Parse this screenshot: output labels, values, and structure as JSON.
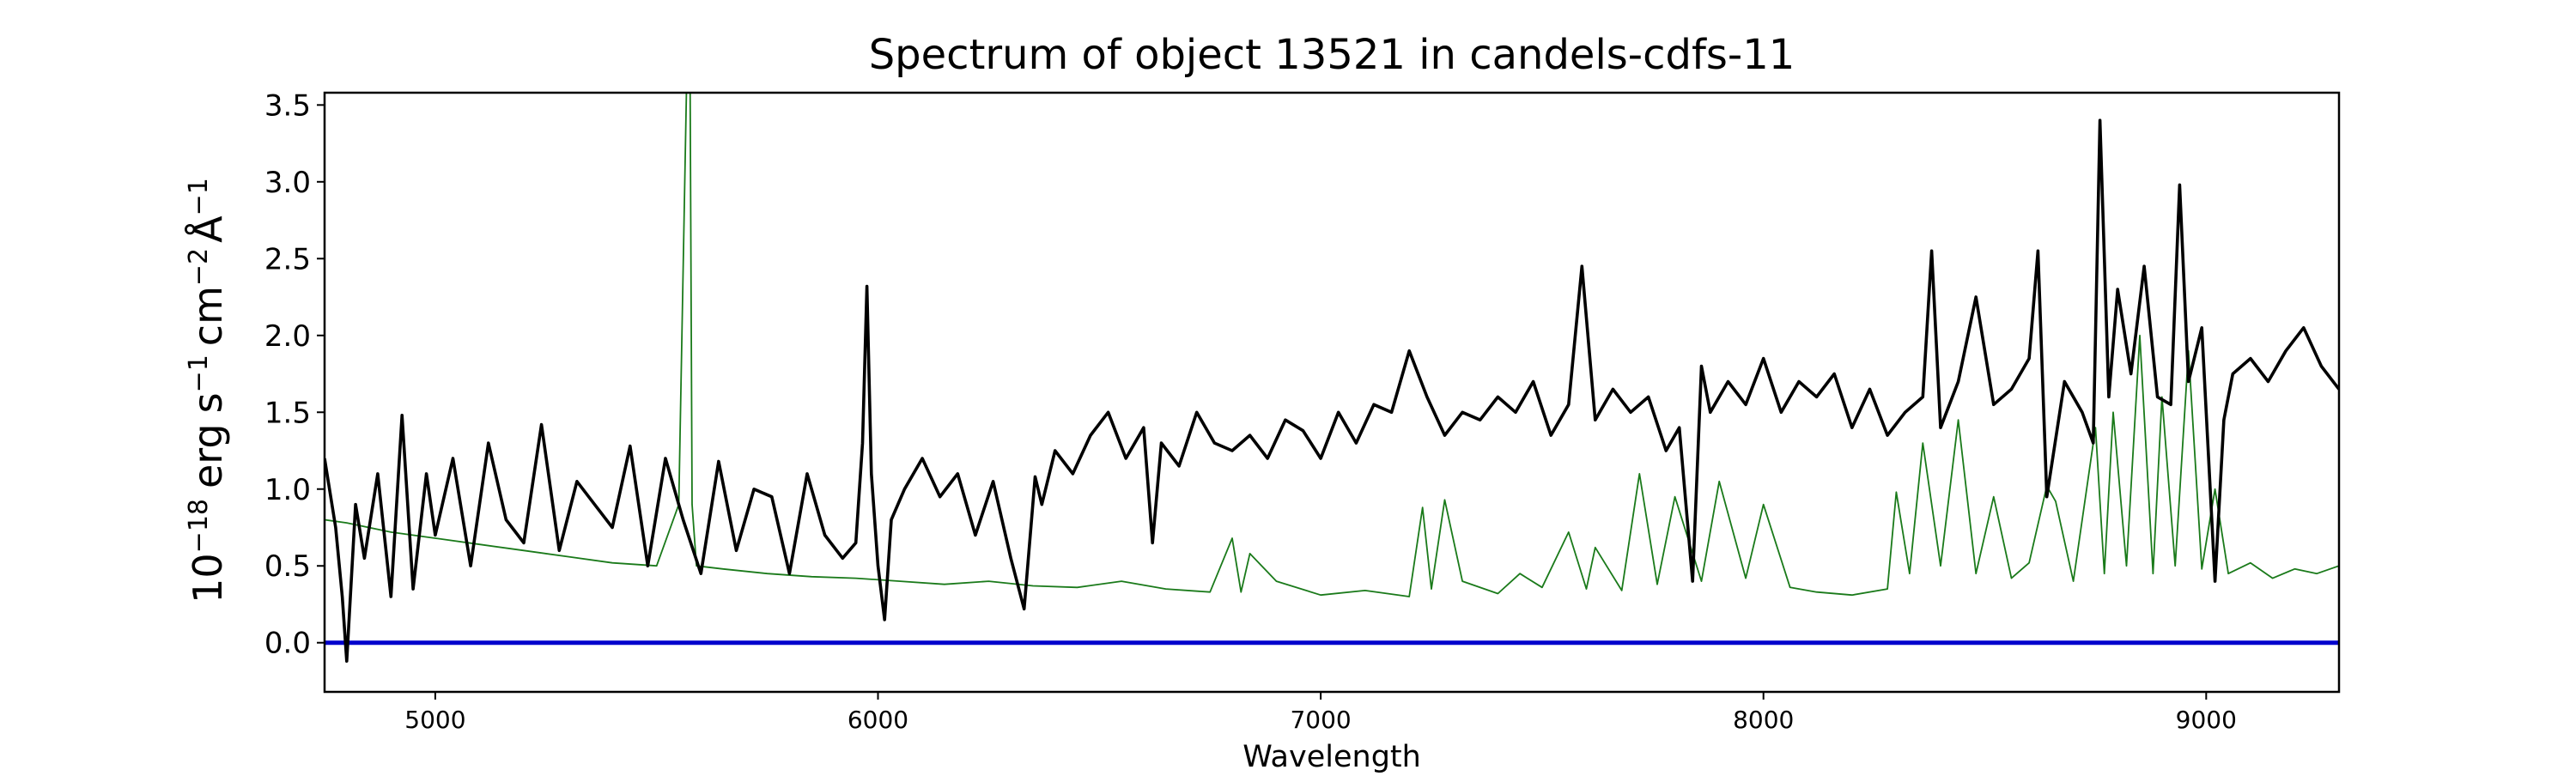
{
  "chart_data": {
    "type": "line",
    "title": "Spectrum of object 13521 in candels-cdfs-11",
    "xlabel": "Wavelength",
    "ylabel": "10^-18 erg s^-1 cm^-2 Å^-1",
    "ylabel_parts": {
      "mult_base": "10",
      "mult_exp": "−18",
      "erg": "erg",
      "s_base": "s",
      "s_exp": "−1",
      "cm_base": "cm",
      "cm_exp": "−2",
      "ang_base": "Å",
      "ang_exp": "−1"
    },
    "xlim": [
      4750,
      9300
    ],
    "ylim": [
      -0.32,
      3.58
    ],
    "x_ticks": [
      5000,
      6000,
      7000,
      8000,
      9000
    ],
    "x_tick_labels": [
      "5000",
      "6000",
      "7000",
      "8000",
      "9000"
    ],
    "y_ticks": [
      0.0,
      0.5,
      1.0,
      1.5,
      2.0,
      2.5,
      3.0,
      3.5
    ],
    "y_tick_labels": [
      "0.0",
      "0.5",
      "1.0",
      "1.5",
      "2.0",
      "2.5",
      "3.0",
      "3.5"
    ],
    "grid": false,
    "colors": {
      "flux": "#000000",
      "error": "#1a7a1a",
      "zero": "#0000cc"
    },
    "zero_line": 0.0,
    "series": [
      {
        "role": "flux",
        "x": [
          4750,
          4775,
          4790,
          4800,
          4820,
          4840,
          4870,
          4900,
          4925,
          4950,
          4980,
          5000,
          5040,
          5080,
          5120,
          5160,
          5200,
          5240,
          5280,
          5320,
          5360,
          5400,
          5440,
          5480,
          5520,
          5560,
          5600,
          5640,
          5680,
          5720,
          5760,
          5800,
          5840,
          5880,
          5920,
          5950,
          5965,
          5975,
          5985,
          6000,
          6015,
          6030,
          6060,
          6100,
          6140,
          6180,
          6220,
          6260,
          6300,
          6330,
          6355,
          6370,
          6400,
          6440,
          6480,
          6520,
          6560,
          6600,
          6620,
          6640,
          6680,
          6720,
          6760,
          6800,
          6840,
          6880,
          6920,
          6960,
          7000,
          7040,
          7080,
          7120,
          7160,
          7200,
          7240,
          7280,
          7320,
          7360,
          7400,
          7440,
          7480,
          7520,
          7560,
          7590,
          7620,
          7660,
          7700,
          7740,
          7780,
          7810,
          7840,
          7860,
          7880,
          7920,
          7960,
          8000,
          8040,
          8080,
          8120,
          8160,
          8200,
          8240,
          8280,
          8320,
          8360,
          8380,
          8400,
          8440,
          8480,
          8520,
          8560,
          8600,
          8620,
          8640,
          8680,
          8720,
          8745,
          8760,
          8780,
          8800,
          8830,
          8860,
          8890,
          8920,
          8940,
          8960,
          8990,
          9020,
          9040,
          9060,
          9100,
          9140,
          9180,
          9220,
          9260,
          9300
        ],
        "y": [
          1.2,
          0.75,
          0.3,
          -0.12,
          0.9,
          0.55,
          1.1,
          0.3,
          1.48,
          0.35,
          1.1,
          0.7,
          1.2,
          0.5,
          1.3,
          0.8,
          0.65,
          1.42,
          0.6,
          1.05,
          0.9,
          0.75,
          1.28,
          0.5,
          1.2,
          0.8,
          0.45,
          1.18,
          0.6,
          1.0,
          0.95,
          0.45,
          1.1,
          0.7,
          0.55,
          0.65,
          1.3,
          2.32,
          1.1,
          0.5,
          0.15,
          0.8,
          1.0,
          1.2,
          0.95,
          1.1,
          0.7,
          1.05,
          0.55,
          0.22,
          1.08,
          0.9,
          1.25,
          1.1,
          1.35,
          1.5,
          1.2,
          1.4,
          0.65,
          1.3,
          1.15,
          1.5,
          1.3,
          1.25,
          1.35,
          1.2,
          1.45,
          1.38,
          1.2,
          1.5,
          1.3,
          1.55,
          1.5,
          1.9,
          1.6,
          1.35,
          1.5,
          1.45,
          1.6,
          1.5,
          1.7,
          1.35,
          1.55,
          2.45,
          1.45,
          1.65,
          1.5,
          1.6,
          1.25,
          1.4,
          0.4,
          1.8,
          1.5,
          1.7,
          1.55,
          1.85,
          1.5,
          1.7,
          1.6,
          1.75,
          1.4,
          1.65,
          1.35,
          1.5,
          1.6,
          2.55,
          1.4,
          1.7,
          2.25,
          1.55,
          1.65,
          1.85,
          2.55,
          0.95,
          1.7,
          1.5,
          1.3,
          3.4,
          1.6,
          2.3,
          1.75,
          2.45,
          1.6,
          1.55,
          2.98,
          1.7,
          2.05,
          0.4,
          1.45,
          1.75,
          1.85,
          1.7,
          1.9,
          2.05,
          1.8,
          1.65
        ]
      },
      {
        "role": "error",
        "x": [
          4750,
          4800,
          4900,
          5000,
          5100,
          5200,
          5300,
          5400,
          5500,
          5550,
          5570,
          5575,
          5580,
          5590,
          5650,
          5750,
          5850,
          5950,
          6050,
          6150,
          6250,
          6350,
          6450,
          6550,
          6650,
          6750,
          6800,
          6820,
          6840,
          6900,
          7000,
          7100,
          7200,
          7230,
          7250,
          7280,
          7320,
          7400,
          7450,
          7500,
          7560,
          7600,
          7620,
          7680,
          7720,
          7760,
          7800,
          7860,
          7900,
          7960,
          8000,
          8060,
          8120,
          8200,
          8280,
          8300,
          8330,
          8360,
          8400,
          8440,
          8480,
          8520,
          8560,
          8600,
          8640,
          8660,
          8700,
          8750,
          8770,
          8790,
          8820,
          8850,
          8880,
          8900,
          8930,
          8960,
          8990,
          9020,
          9050,
          9100,
          9150,
          9200,
          9250,
          9300
        ],
        "y": [
          0.8,
          0.78,
          0.72,
          0.68,
          0.64,
          0.6,
          0.56,
          0.52,
          0.5,
          0.9,
          4.0,
          4.0,
          0.9,
          0.5,
          0.48,
          0.45,
          0.43,
          0.42,
          0.4,
          0.38,
          0.4,
          0.37,
          0.36,
          0.4,
          0.35,
          0.33,
          0.68,
          0.33,
          0.58,
          0.4,
          0.31,
          0.34,
          0.3,
          0.88,
          0.35,
          0.93,
          0.4,
          0.32,
          0.45,
          0.36,
          0.72,
          0.35,
          0.62,
          0.34,
          1.1,
          0.38,
          0.95,
          0.4,
          1.05,
          0.42,
          0.9,
          0.36,
          0.33,
          0.31,
          0.35,
          0.98,
          0.45,
          1.3,
          0.5,
          1.45,
          0.45,
          0.95,
          0.42,
          0.52,
          1.02,
          0.92,
          0.4,
          1.4,
          0.45,
          1.5,
          0.5,
          2.0,
          0.45,
          1.6,
          0.5,
          1.9,
          0.48,
          1.0,
          0.45,
          0.52,
          0.42,
          0.48,
          0.45,
          0.5
        ]
      }
    ]
  }
}
